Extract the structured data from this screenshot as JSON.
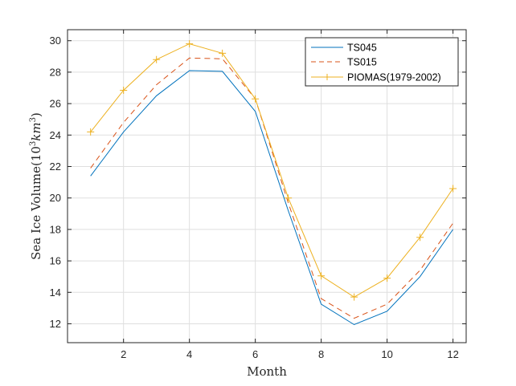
{
  "chart_data": {
    "type": "line",
    "title": "",
    "xlabel": "Month",
    "ylabel": "Sea Ice Volume(10^3 km^3)",
    "ylabel_parts": {
      "prefix": "Sea Ice Volume(10",
      "exp1": "3",
      "unit": "km",
      "exp2": "3",
      "suffix": ")"
    },
    "xlim": [
      0.3,
      12.4
    ],
    "ylim": [
      10.8,
      30.7
    ],
    "xticks": [
      "2",
      "4",
      "6",
      "8",
      "10",
      "12"
    ],
    "yticks": [
      "12",
      "14",
      "16",
      "18",
      "20",
      "22",
      "24",
      "26",
      "28",
      "30"
    ],
    "grid": true,
    "legend_position": "top-right",
    "x": [
      1,
      2,
      3,
      4,
      5,
      6,
      7,
      8,
      9,
      10,
      11,
      12
    ],
    "series": [
      {
        "name": "TS045",
        "color": "#0072BD",
        "style": "solid",
        "marker": "none",
        "values": [
          21.4,
          24.2,
          26.5,
          28.1,
          28.05,
          25.5,
          19.2,
          13.25,
          11.95,
          12.8,
          15.0,
          18.0
        ]
      },
      {
        "name": "TS015",
        "color": "#D95319",
        "style": "dashed",
        "marker": "none",
        "values": [
          21.9,
          24.8,
          27.2,
          28.9,
          28.85,
          26.3,
          19.7,
          13.6,
          12.35,
          13.25,
          15.4,
          18.4
        ]
      },
      {
        "name": "PIOMAS(1979-2002)",
        "color": "#EDB120",
        "style": "solid",
        "marker": "plus",
        "values": [
          24.2,
          26.85,
          28.8,
          29.8,
          29.2,
          26.3,
          20.0,
          15.05,
          13.7,
          14.9,
          17.5,
          20.6
        ]
      }
    ]
  }
}
